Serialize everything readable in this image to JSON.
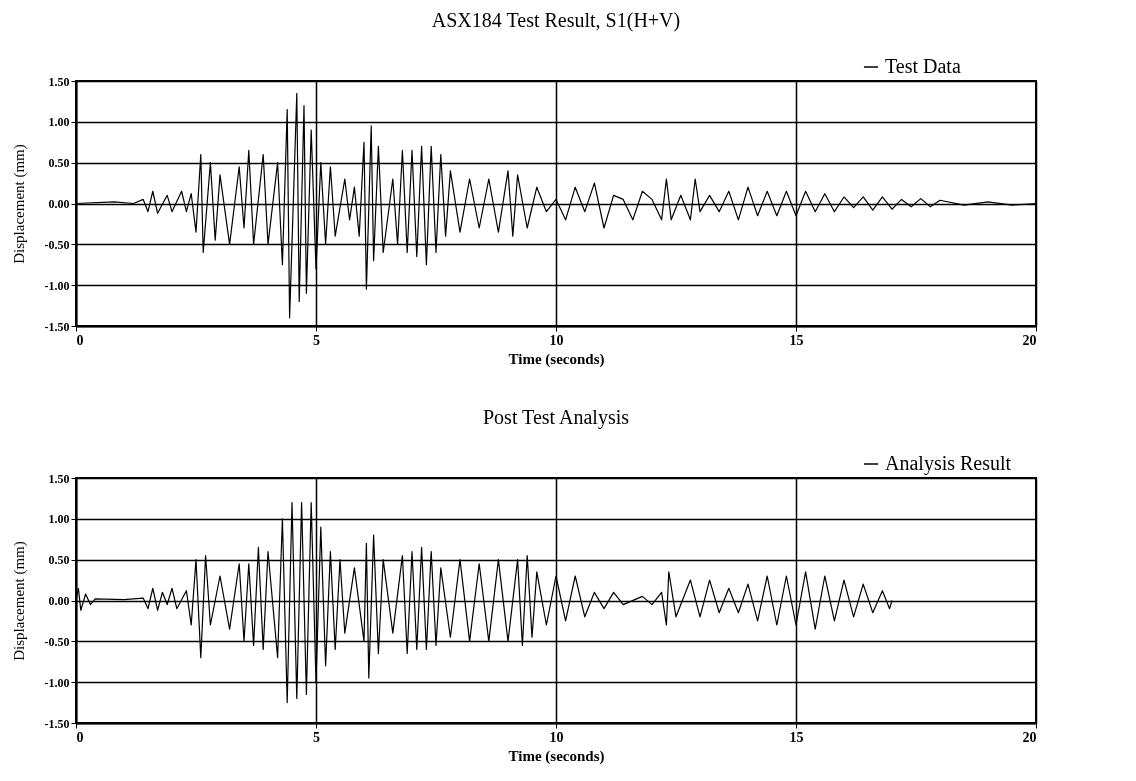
{
  "chart_data": [
    {
      "type": "line",
      "title": "ASX184 Test Result, S1(H+V)",
      "xlabel": "Time (seconds)",
      "ylabel": "Displacement  (mm)",
      "xlim": [
        0,
        20
      ],
      "xticks": [
        0,
        5,
        10,
        15,
        20
      ],
      "ylim": [
        -1.5,
        1.5
      ],
      "yticks": [
        {
          "value": -1.5,
          "label": "-1.50"
        },
        {
          "value": -1,
          "label": "-1.00"
        },
        {
          "value": -0.5,
          "label": "-0.50"
        },
        {
          "value": 0,
          "label": "0.00"
        },
        {
          "value": 0.5,
          "label": "0.50"
        },
        {
          "value": 1,
          "label": "1.00"
        },
        {
          "value": 1.5,
          "label": "1.50"
        }
      ],
      "grid": true,
      "legend": "top right",
      "line_style": "solid",
      "series": [
        {
          "name": "Test Data",
          "color": "#000000",
          "x": [
            0,
            0.8,
            1.2,
            1.4,
            1.5,
            1.6,
            1.7,
            1.9,
            2.0,
            2.2,
            2.3,
            2.4,
            2.5,
            2.6,
            2.65,
            2.8,
            2.9,
            3.0,
            3.2,
            3.4,
            3.5,
            3.6,
            3.7,
            3.9,
            4.0,
            4.2,
            4.3,
            4.4,
            4.45,
            4.6,
            4.65,
            4.75,
            4.8,
            4.9,
            5.0,
            5.1,
            5.2,
            5.3,
            5.4,
            5.6,
            5.7,
            5.8,
            5.9,
            6.0,
            6.05,
            6.15,
            6.2,
            6.3,
            6.4,
            6.6,
            6.7,
            6.8,
            6.9,
            7.0,
            7.1,
            7.2,
            7.3,
            7.4,
            7.5,
            7.6,
            7.7,
            7.8,
            8.0,
            8.2,
            8.4,
            8.6,
            8.8,
            9.0,
            9.1,
            9.2,
            9.4,
            9.6,
            9.8,
            10.0,
            10.2,
            10.4,
            10.6,
            10.8,
            11.0,
            11.2,
            11.4,
            11.6,
            11.8,
            12.0,
            12.2,
            12.3,
            12.4,
            12.6,
            12.8,
            12.9,
            13.0,
            13.2,
            13.4,
            13.6,
            13.8,
            14.0,
            14.2,
            14.4,
            14.6,
            14.8,
            15.0,
            15.2,
            15.4,
            15.6,
            15.8,
            16.0,
            16.2,
            16.4,
            16.6,
            16.8,
            17.0,
            17.2,
            17.4,
            17.6,
            17.8,
            18.0,
            18.5,
            19.0,
            19.5,
            20.0
          ],
          "values": [
            0,
            0.02,
            0,
            0.05,
            -0.1,
            0.15,
            -0.12,
            0.1,
            -0.1,
            0.15,
            -0.1,
            0.12,
            -0.35,
            0.6,
            -0.6,
            0.5,
            -0.45,
            0.35,
            -0.5,
            0.45,
            -0.3,
            0.65,
            -0.5,
            0.6,
            -0.5,
            0.5,
            -0.75,
            1.15,
            -1.4,
            1.35,
            -1.2,
            1.2,
            -1.1,
            0.9,
            -0.8,
            0.5,
            -0.5,
            0.45,
            -0.4,
            0.3,
            -0.2,
            0.2,
            -0.4,
            0.75,
            -1.05,
            0.95,
            -0.7,
            0.7,
            -0.6,
            0.3,
            -0.5,
            0.65,
            -0.6,
            0.65,
            -0.65,
            0.7,
            -0.75,
            0.7,
            -0.6,
            0.6,
            -0.4,
            0.4,
            -0.35,
            0.3,
            -0.3,
            0.3,
            -0.35,
            0.4,
            -0.4,
            0.35,
            -0.3,
            0.2,
            -0.1,
            0.05,
            -0.2,
            0.2,
            -0.1,
            0.25,
            -0.3,
            0.1,
            0.05,
            -0.2,
            0.15,
            0.05,
            -0.2,
            0.3,
            -0.2,
            0.1,
            -0.2,
            0.3,
            -0.1,
            0.1,
            -0.1,
            0.15,
            -0.2,
            0.2,
            -0.15,
            0.15,
            -0.15,
            0.15,
            -0.15,
            0.15,
            -0.1,
            0.12,
            -0.1,
            0.08,
            -0.05,
            0.08,
            -0.08,
            0.08,
            -0.07,
            0.05,
            -0.04,
            0.06,
            -0.04,
            0.04,
            -0.02,
            0.02,
            -0.02,
            0
          ]
        }
      ]
    },
    {
      "type": "line",
      "title": "Post Test Analysis",
      "xlabel": "Time (seconds)",
      "ylabel": "Displacement  (mm)",
      "xlim": [
        0,
        20
      ],
      "xticks": [
        0,
        5,
        10,
        15,
        20
      ],
      "ylim": [
        -1.5,
        1.5
      ],
      "yticks": [
        {
          "value": -1.5,
          "label": "-1.50"
        },
        {
          "value": -1,
          "label": "-1.00"
        },
        {
          "value": -0.5,
          "label": "-0.50"
        },
        {
          "value": 0,
          "label": "0.00"
        },
        {
          "value": 0.5,
          "label": "0.50"
        },
        {
          "value": 1,
          "label": "1.00"
        },
        {
          "value": 1.5,
          "label": "1.50"
        }
      ],
      "grid": true,
      "legend": "top right",
      "line_style": "solid",
      "series": [
        {
          "name": "Analysis Result",
          "color": "#000000",
          "x": [
            0,
            0.05,
            0.1,
            0.2,
            0.3,
            0.4,
            1.0,
            1.4,
            1.5,
            1.6,
            1.7,
            1.8,
            1.9,
            2.0,
            2.1,
            2.3,
            2.4,
            2.5,
            2.6,
            2.7,
            2.8,
            3.0,
            3.2,
            3.4,
            3.5,
            3.6,
            3.7,
            3.8,
            3.9,
            4.0,
            4.2,
            4.3,
            4.4,
            4.5,
            4.6,
            4.7,
            4.8,
            4.9,
            5.0,
            5.1,
            5.2,
            5.3,
            5.4,
            5.5,
            5.6,
            5.8,
            6.0,
            6.05,
            6.1,
            6.2,
            6.3,
            6.4,
            6.6,
            6.8,
            6.9,
            7.0,
            7.1,
            7.2,
            7.3,
            7.4,
            7.5,
            7.6,
            7.8,
            8.0,
            8.2,
            8.4,
            8.6,
            8.8,
            9.0,
            9.2,
            9.3,
            9.4,
            9.5,
            9.6,
            9.8,
            10.0,
            10.2,
            10.4,
            10.6,
            10.8,
            11.0,
            11.2,
            11.4,
            11.8,
            12.0,
            12.2,
            12.3,
            12.35,
            12.5,
            12.8,
            13.0,
            13.2,
            13.4,
            13.6,
            13.8,
            14.0,
            14.2,
            14.4,
            14.6,
            14.8,
            15.0,
            15.2,
            15.4,
            15.6,
            15.8,
            16.0,
            16.2,
            16.4,
            16.6,
            16.8,
            16.95,
            17.0
          ],
          "values": [
            0,
            0.15,
            -0.12,
            0.08,
            -0.05,
            0.02,
            0.01,
            0.03,
            -0.1,
            0.15,
            -0.12,
            0.1,
            -0.05,
            0.15,
            -0.1,
            0.12,
            -0.3,
            0.5,
            -0.7,
            0.55,
            -0.3,
            0.3,
            -0.35,
            0.45,
            -0.5,
            0.45,
            -0.55,
            0.65,
            -0.6,
            0.6,
            -0.7,
            1.0,
            -1.25,
            1.2,
            -1.2,
            1.2,
            -1.15,
            1.2,
            -1.0,
            0.9,
            -0.8,
            0.6,
            -0.6,
            0.5,
            -0.4,
            0.4,
            -0.5,
            0.7,
            -0.95,
            0.8,
            -0.65,
            0.5,
            -0.4,
            0.55,
            -0.65,
            0.6,
            -0.6,
            0.65,
            -0.6,
            0.6,
            -0.55,
            0.4,
            -0.45,
            0.5,
            -0.5,
            0.45,
            -0.5,
            0.5,
            -0.5,
            0.5,
            -0.55,
            0.55,
            -0.45,
            0.35,
            -0.3,
            0.3,
            -0.25,
            0.3,
            -0.2,
            0.1,
            -0.1,
            0.1,
            -0.05,
            0.05,
            -0.05,
            0.1,
            -0.3,
            0.35,
            -0.2,
            0.25,
            -0.2,
            0.25,
            -0.15,
            0.15,
            -0.15,
            0.2,
            -0.25,
            0.3,
            -0.3,
            0.3,
            -0.3,
            0.35,
            -0.35,
            0.3,
            -0.25,
            0.25,
            -0.2,
            0.2,
            -0.15,
            0.12,
            -0.1,
            0
          ]
        }
      ]
    }
  ]
}
